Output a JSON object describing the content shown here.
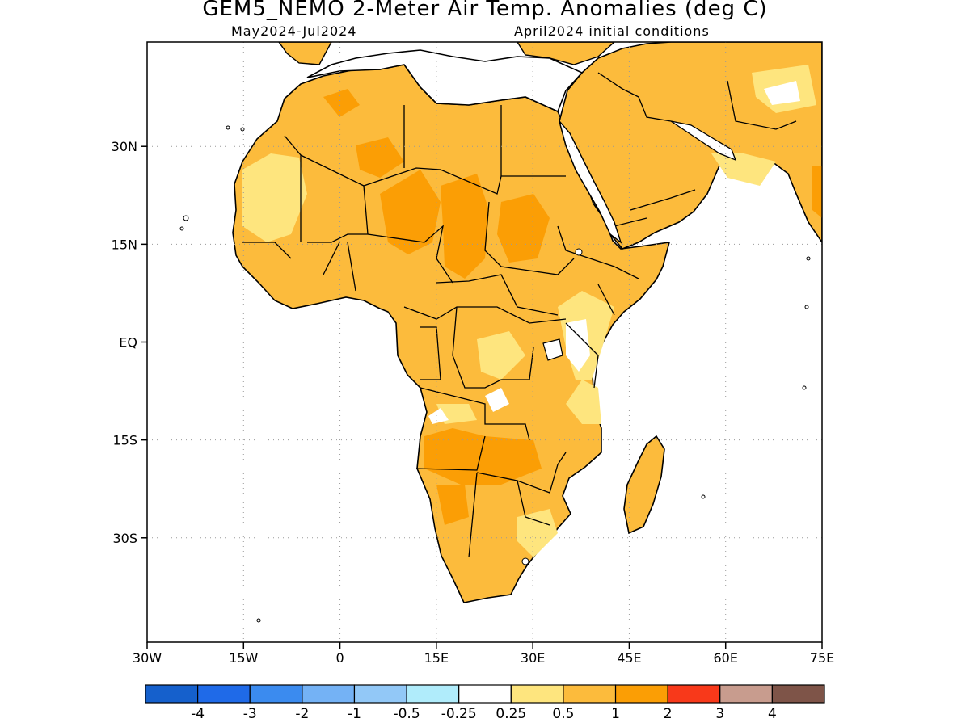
{
  "title": "GEM5_NEMO 2-Meter Air Temp. Anomalies (deg C)",
  "period": "May2024-Jul2024",
  "init": "April2024 initial conditions",
  "lat_labels": [
    "30N",
    "15N",
    "EQ",
    "15S",
    "30S"
  ],
  "lon_labels": [
    "30W",
    "15W",
    "0",
    "15E",
    "30E",
    "45E",
    "60E",
    "75E"
  ],
  "colorbar": {
    "colors": [
      "#1560cc",
      "#1f6ae8",
      "#3b8bef",
      "#74b2f5",
      "#92c8f7",
      "#b0ecfb",
      "#ffffff",
      "#fee57e",
      "#fcbb3c",
      "#fb9e05",
      "#f8391a",
      "#c89c8e",
      "#7e5448"
    ],
    "labels": [
      "-4",
      "-3",
      "-2",
      "-1",
      "-0.5",
      "-0.25",
      "0.25",
      "0.5",
      "1",
      "2",
      "3",
      "4"
    ]
  },
  "map": {
    "lon_range": [
      -30,
      75
    ],
    "lat_range": [
      -46,
      46
    ],
    "land_color": "#fcbb3c",
    "ocean_color": "#ffffff",
    "gridlines": "dotted"
  }
}
